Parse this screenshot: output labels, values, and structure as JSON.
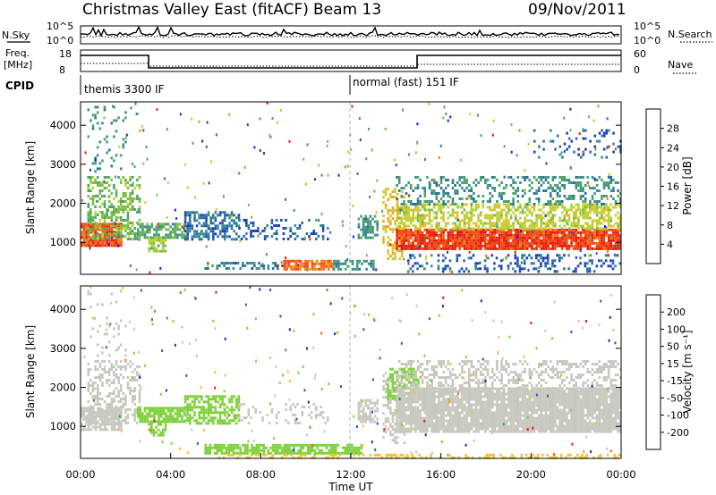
{
  "header": {
    "title": "Christmas Valley East (fitACF)",
    "beam": "Beam 13",
    "date": "09/Nov/2011"
  },
  "panels": {
    "nsky": {
      "label": "N.Sky",
      "left_ticks": [
        "10^5",
        "10^0"
      ],
      "right_ticks": [
        "10^5",
        "10^0"
      ],
      "right_label": "N.Search"
    },
    "freq": {
      "label_line1": "Freq.",
      "label_line2": "[MHz]",
      "left_ticks": [
        "18",
        "8"
      ],
      "right_ticks": [
        "60",
        "0"
      ],
      "right_label": "Nave"
    },
    "cpid": {
      "label": "CPID",
      "modes": [
        {
          "name": "themis 3300 IF",
          "start_ut": 0
        },
        {
          "name": "normal (fast) 151 IF",
          "start_ut": 12
        }
      ]
    }
  },
  "chart_data": [
    {
      "type": "heatmap",
      "name": "power",
      "ylabel": "Slant Range [km]",
      "xlabel": "",
      "xlim": [
        0,
        24
      ],
      "ylim": [
        180,
        4600
      ],
      "yticks": [
        1000,
        2000,
        3000,
        4000
      ],
      "colorbar": {
        "label": "Power [dB]",
        "ticks": [
          4,
          8,
          12,
          16,
          20,
          24,
          28
        ],
        "range": [
          0,
          32
        ],
        "colors": [
          "#1a1aff",
          "#1f3fbf",
          "#2a6fa3",
          "#3c8f8a",
          "#4fa36b",
          "#7cbd45",
          "#b5d43a",
          "#e3c226",
          "#f0a020",
          "#f5781a",
          "#f24a14",
          "#e61e10"
        ]
      },
      "regions": [
        {
          "t0": 0.0,
          "t1": 1.8,
          "r0": 900,
          "r1": 1500,
          "level": 28,
          "fill": 0.9
        },
        {
          "t0": 0.3,
          "t1": 2.6,
          "r0": 1100,
          "r1": 2700,
          "level": 14,
          "fill": 0.45
        },
        {
          "t0": 2.5,
          "t1": 4.6,
          "r0": 1100,
          "r1": 1500,
          "level": 12,
          "fill": 0.7
        },
        {
          "t0": 3.0,
          "t1": 3.8,
          "r0": 750,
          "r1": 1150,
          "level": 16,
          "fill": 0.6
        },
        {
          "t0": 4.6,
          "t1": 7.0,
          "r0": 1100,
          "r1": 1800,
          "level": 7,
          "fill": 0.55
        },
        {
          "t0": 7.0,
          "t1": 11.0,
          "r0": 1100,
          "r1": 1600,
          "level": 6,
          "fill": 0.25
        },
        {
          "t0": 5.5,
          "t1": 9.0,
          "r0": 300,
          "r1": 500,
          "level": 8,
          "fill": 0.5
        },
        {
          "t0": 9.0,
          "t1": 11.2,
          "r0": 280,
          "r1": 550,
          "level": 26,
          "fill": 0.8
        },
        {
          "t0": 11.2,
          "t1": 13.0,
          "r0": 300,
          "r1": 550,
          "level": 10,
          "fill": 0.55
        },
        {
          "t0": 12.3,
          "t1": 13.2,
          "r0": 1100,
          "r1": 1700,
          "level": 10,
          "fill": 0.6
        },
        {
          "t0": 13.4,
          "t1": 14.4,
          "r0": 600,
          "r1": 2400,
          "level": 20,
          "fill": 0.35
        },
        {
          "t0": 14.0,
          "t1": 24.0,
          "r0": 850,
          "r1": 1350,
          "level": 29,
          "fill": 0.92
        },
        {
          "t0": 14.0,
          "t1": 24.0,
          "r0": 1350,
          "r1": 2000,
          "level": 18,
          "fill": 0.6
        },
        {
          "t0": 14.0,
          "t1": 24.0,
          "r0": 2000,
          "r1": 2700,
          "level": 10,
          "fill": 0.35
        },
        {
          "t0": 14.5,
          "t1": 24.0,
          "r0": 250,
          "r1": 700,
          "level": 6,
          "fill": 0.25
        },
        {
          "t0": 20.0,
          "t1": 24.0,
          "r0": 3200,
          "r1": 3900,
          "level": 6,
          "fill": 0.15
        },
        {
          "t0": 0.3,
          "t1": 2.0,
          "r0": 2800,
          "r1": 4500,
          "level": 10,
          "fill": 0.12
        }
      ]
    },
    {
      "type": "heatmap",
      "name": "velocity",
      "ylabel": "Slant Range [km]",
      "xlabel": "Time UT",
      "xlim": [
        0,
        24
      ],
      "ylim": [
        180,
        4600
      ],
      "xticks": [
        "00:00",
        "04:00",
        "08:00",
        "12:00",
        "16:00",
        "20:00",
        "00:00"
      ],
      "yticks": [
        1000,
        2000,
        3000,
        4000
      ],
      "colorbar": {
        "label": "Velocity [m s⁻¹]",
        "ticks": [
          200,
          100,
          50,
          15,
          -15,
          -50,
          -100,
          -200
        ],
        "colors": [
          "#2626b8",
          "#2f56d4",
          "#2f7d3a",
          "#3fa24a",
          "#7fd13b",
          "#c8c8c0",
          "#f2c230",
          "#f59a1e",
          "#f26616",
          "#e61e10"
        ]
      },
      "regions": [
        {
          "t0": 0.0,
          "t1": 1.8,
          "r0": 900,
          "r1": 1500,
          "color": "#c8c8c0",
          "fill": 0.85
        },
        {
          "t0": 0.3,
          "t1": 2.6,
          "r0": 1100,
          "r1": 2700,
          "color": "#c8c8c0",
          "fill": 0.45
        },
        {
          "t0": 2.5,
          "t1": 4.6,
          "r0": 1100,
          "r1": 1500,
          "color": "#7fd13b",
          "fill": 0.8
        },
        {
          "t0": 3.0,
          "t1": 3.8,
          "r0": 750,
          "r1": 1150,
          "color": "#7fd13b",
          "fill": 0.6
        },
        {
          "t0": 4.6,
          "t1": 7.0,
          "r0": 1100,
          "r1": 1800,
          "color": "#7fd13b",
          "fill": 0.6
        },
        {
          "t0": 7.0,
          "t1": 11.0,
          "r0": 1100,
          "r1": 1600,
          "color": "#c8c8c0",
          "fill": 0.2
        },
        {
          "t0": 5.5,
          "t1": 12.5,
          "r0": 280,
          "r1": 550,
          "color": "#7fd13b",
          "fill": 0.75
        },
        {
          "t0": 6.0,
          "t1": 24.0,
          "r0": 190,
          "r1": 300,
          "color": "#f2c230",
          "fill": 0.4
        },
        {
          "t0": 12.3,
          "t1": 13.2,
          "r0": 1100,
          "r1": 1700,
          "color": "#c8c8c0",
          "fill": 0.6
        },
        {
          "t0": 13.4,
          "t1": 14.4,
          "r0": 600,
          "r1": 2400,
          "color": "#c8c8c0",
          "fill": 0.4
        },
        {
          "t0": 13.6,
          "t1": 15.0,
          "r0": 1700,
          "r1": 2500,
          "color": "#7fd13b",
          "fill": 0.5
        },
        {
          "t0": 14.0,
          "t1": 24.0,
          "r0": 850,
          "r1": 2000,
          "color": "#c8c8c0",
          "fill": 0.92
        },
        {
          "t0": 14.0,
          "t1": 24.0,
          "r0": 2000,
          "r1": 2700,
          "color": "#c8c8c0",
          "fill": 0.4
        },
        {
          "t0": 0.3,
          "t1": 2.0,
          "r0": 2800,
          "r1": 4500,
          "color": "#c8c8c0",
          "fill": 0.08
        }
      ]
    }
  ]
}
